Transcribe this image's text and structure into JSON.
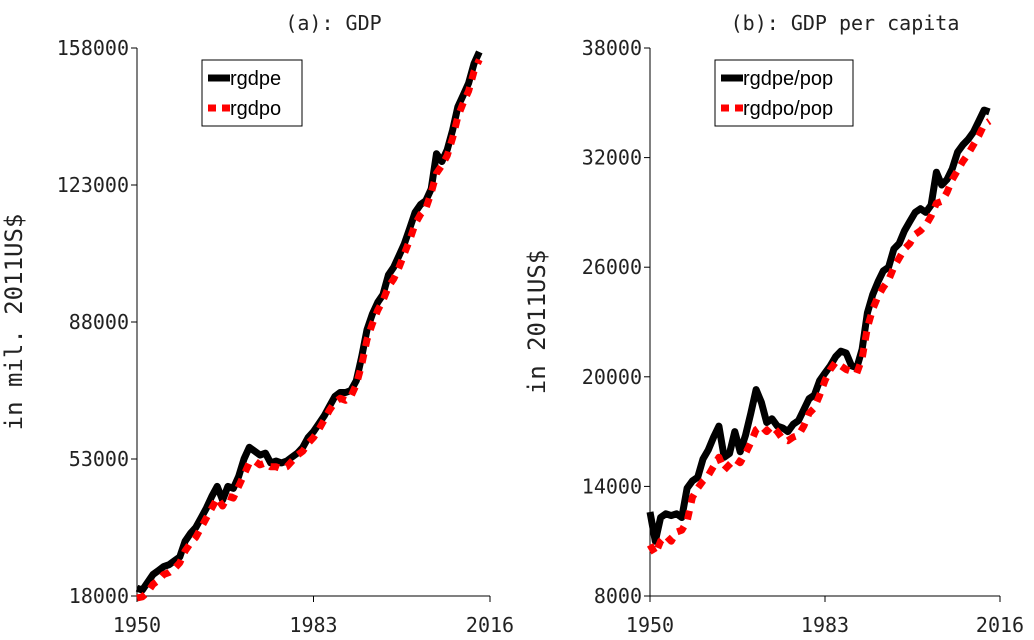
{
  "chart_data": [
    {
      "type": "line",
      "title": "(a): GDP",
      "y_label": "in mil. 2011US$",
      "x": [
        1950,
        1951,
        1952,
        1953,
        1954,
        1955,
        1956,
        1957,
        1958,
        1959,
        1960,
        1961,
        1962,
        1963,
        1964,
        1965,
        1966,
        1967,
        1968,
        1969,
        1970,
        1971,
        1972,
        1973,
        1974,
        1975,
        1976,
        1977,
        1978,
        1979,
        1980,
        1981,
        1982,
        1983,
        1984,
        1985,
        1986,
        1987,
        1988,
        1989,
        1990,
        1991,
        1992,
        1993,
        1994,
        1995,
        1996,
        1997,
        1998,
        1999,
        2000,
        2001,
        2002,
        2003,
        2004,
        2005,
        2006,
        2007,
        2008,
        2009,
        2010,
        2011,
        2012,
        2013,
        2014
      ],
      "series": [
        {
          "name": "rgdpe",
          "color": "#000000",
          "linestyle": "solid",
          "values": [
            20000,
            19500,
            21500,
            23500,
            24500,
            25500,
            26000,
            27000,
            28000,
            32000,
            34000,
            35500,
            38000,
            40500,
            43500,
            46000,
            42500,
            46000,
            45500,
            48500,
            53000,
            56000,
            55000,
            54000,
            54500,
            52000,
            52500,
            52000,
            52500,
            53500,
            54500,
            56000,
            58500,
            60000,
            62000,
            64000,
            66500,
            69000,
            70000,
            70000,
            70500,
            73000,
            79000,
            86000,
            90000,
            93000,
            95000,
            100000,
            102000,
            105000,
            108000,
            112000,
            116000,
            118000,
            119000,
            122000,
            131000,
            129000,
            132000,
            137000,
            143000,
            146000,
            149000,
            154000,
            157000
          ]
        },
        {
          "name": "rgdpo",
          "color": "#ff0000",
          "linestyle": "dashed",
          "values": [
            17500,
            17800,
            19000,
            21000,
            22000,
            23500,
            24000,
            25000,
            26500,
            29500,
            31500,
            33000,
            35500,
            38000,
            40500,
            43000,
            41000,
            43500,
            43000,
            46000,
            49000,
            52000,
            52500,
            51500,
            52000,
            51000,
            51000,
            50500,
            51000,
            52500,
            54000,
            55000,
            57000,
            58500,
            60500,
            63000,
            65500,
            67500,
            68500,
            68000,
            69000,
            72000,
            77000,
            83500,
            87500,
            91000,
            93500,
            97000,
            99000,
            102000,
            105500,
            109000,
            113000,
            115500,
            117000,
            121000,
            126000,
            128000,
            130500,
            135000,
            140500,
            144000,
            147000,
            152000,
            155000
          ]
        }
      ],
      "xlim": [
        1950,
        2016
      ],
      "xticks": [
        1950,
        1983,
        2016
      ],
      "ylim": [
        18000,
        158000
      ],
      "yticks": [
        18000,
        53000,
        88000,
        123000,
        158000
      ],
      "legend": "top-left"
    },
    {
      "type": "line",
      "title": "(b): GDP per capita",
      "y_label": "in 2011US$",
      "x": [
        1950,
        1951,
        1952,
        1953,
        1954,
        1955,
        1956,
        1957,
        1958,
        1959,
        1960,
        1961,
        1962,
        1963,
        1964,
        1965,
        1966,
        1967,
        1968,
        1969,
        1970,
        1971,
        1972,
        1973,
        1974,
        1975,
        1976,
        1977,
        1978,
        1979,
        1980,
        1981,
        1982,
        1983,
        1984,
        1985,
        1986,
        1987,
        1988,
        1989,
        1990,
        1991,
        1992,
        1993,
        1994,
        1995,
        1996,
        1997,
        1998,
        1999,
        2000,
        2001,
        2002,
        2003,
        2004,
        2005,
        2006,
        2007,
        2008,
        2009,
        2010,
        2011,
        2012,
        2013,
        2014
      ],
      "series": [
        {
          "name": "rgdpe/pop",
          "color": "#000000",
          "linestyle": "solid",
          "values": [
            12600,
            11000,
            12300,
            12500,
            12400,
            12500,
            12300,
            13900,
            14300,
            14500,
            15500,
            16000,
            16700,
            17300,
            15600,
            15800,
            17000,
            15900,
            16800,
            18000,
            19300,
            18600,
            17500,
            17700,
            17300,
            17200,
            17000,
            17400,
            17600,
            18200,
            18800,
            19000,
            19800,
            20200,
            20600,
            21100,
            21400,
            21300,
            20600,
            20500,
            21500,
            23500,
            24500,
            25200,
            25800,
            26000,
            27000,
            27300,
            28000,
            28500,
            29000,
            29200,
            29000,
            29400,
            31200,
            30500,
            30800,
            31400,
            32300,
            32700,
            33000,
            33400,
            34000,
            34600,
            34500
          ]
        },
        {
          "name": "rgdpo/pop",
          "color": "#ff0000",
          "linestyle": "dashed",
          "values": [
            10800,
            10300,
            11000,
            11300,
            11000,
            11500,
            11600,
            12100,
            13400,
            13900,
            14300,
            14600,
            15100,
            15600,
            14900,
            15200,
            15500,
            15300,
            15800,
            16400,
            17100,
            17300,
            17000,
            17300,
            17000,
            16600,
            16500,
            16700,
            16800,
            17300,
            18000,
            18300,
            19000,
            19800,
            20400,
            20800,
            20600,
            20400,
            20300,
            20200,
            21000,
            22700,
            23700,
            24400,
            24900,
            25300,
            26000,
            26500,
            27000,
            27300,
            27800,
            28000,
            28300,
            28800,
            29500,
            29600,
            30100,
            30800,
            31300,
            31800,
            32200,
            32700,
            33200,
            33800,
            34000
          ]
        }
      ],
      "xlim": [
        1950,
        2016
      ],
      "xticks": [
        1950,
        1983,
        2016
      ],
      "ylim": [
        8000,
        38000
      ],
      "yticks": [
        8000,
        14000,
        20000,
        26000,
        32000,
        38000
      ],
      "legend": "top-left"
    }
  ]
}
